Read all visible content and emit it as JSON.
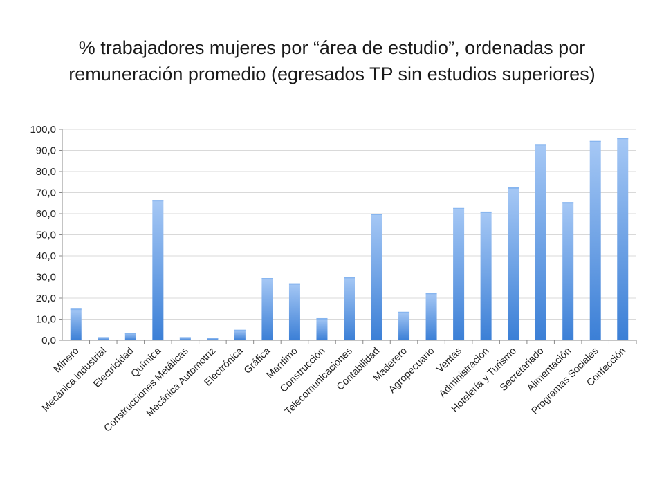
{
  "title_lines": [
    "% trabajadores mujeres por “área de estudio”, ordenadas por",
    "remuneración promedio (egresados TP sin estudios superiores)"
  ],
  "colors": {
    "bar_top": "#a6c8f5",
    "bar_bottom": "#3b7fd6",
    "grid": "#d9d9d9",
    "axis": "#888888"
  },
  "chart_data": {
    "type": "bar",
    "title": "% trabajadores mujeres por “área de estudio”, ordenadas por remuneración promedio (egresados TP sin estudios superiores)",
    "xlabel": "",
    "ylabel": "",
    "ylim": [
      0,
      100
    ],
    "yticks": [
      "0,0",
      "10,0",
      "20,0",
      "30,0",
      "40,0",
      "50,0",
      "60,0",
      "70,0",
      "80,0",
      "90,0",
      "100,0"
    ],
    "grid": true,
    "legend": "none",
    "categories": [
      "Minero",
      "Mecánica industrial",
      "Electricidad",
      "Química",
      "Construcciones Metálicas",
      "Mecánica Automotriz",
      "Electrónica",
      "Gráfica",
      "Marítimo",
      "Construcción",
      "Telecomunicaciones",
      "Contabilidad",
      "Maderero",
      "Agropecuario",
      "Ventas",
      "Administración",
      "Hotelería y Turismo",
      "Secretariado",
      "Alimentación",
      "Programas Sociales",
      "Confección"
    ],
    "values": [
      15.0,
      1.5,
      3.5,
      66.5,
      1.5,
      1.3,
      5.0,
      29.5,
      27.0,
      10.5,
      30.0,
      60.0,
      13.5,
      22.5,
      63.0,
      61.0,
      72.5,
      93.0,
      65.5,
      94.5,
      96.0
    ]
  }
}
